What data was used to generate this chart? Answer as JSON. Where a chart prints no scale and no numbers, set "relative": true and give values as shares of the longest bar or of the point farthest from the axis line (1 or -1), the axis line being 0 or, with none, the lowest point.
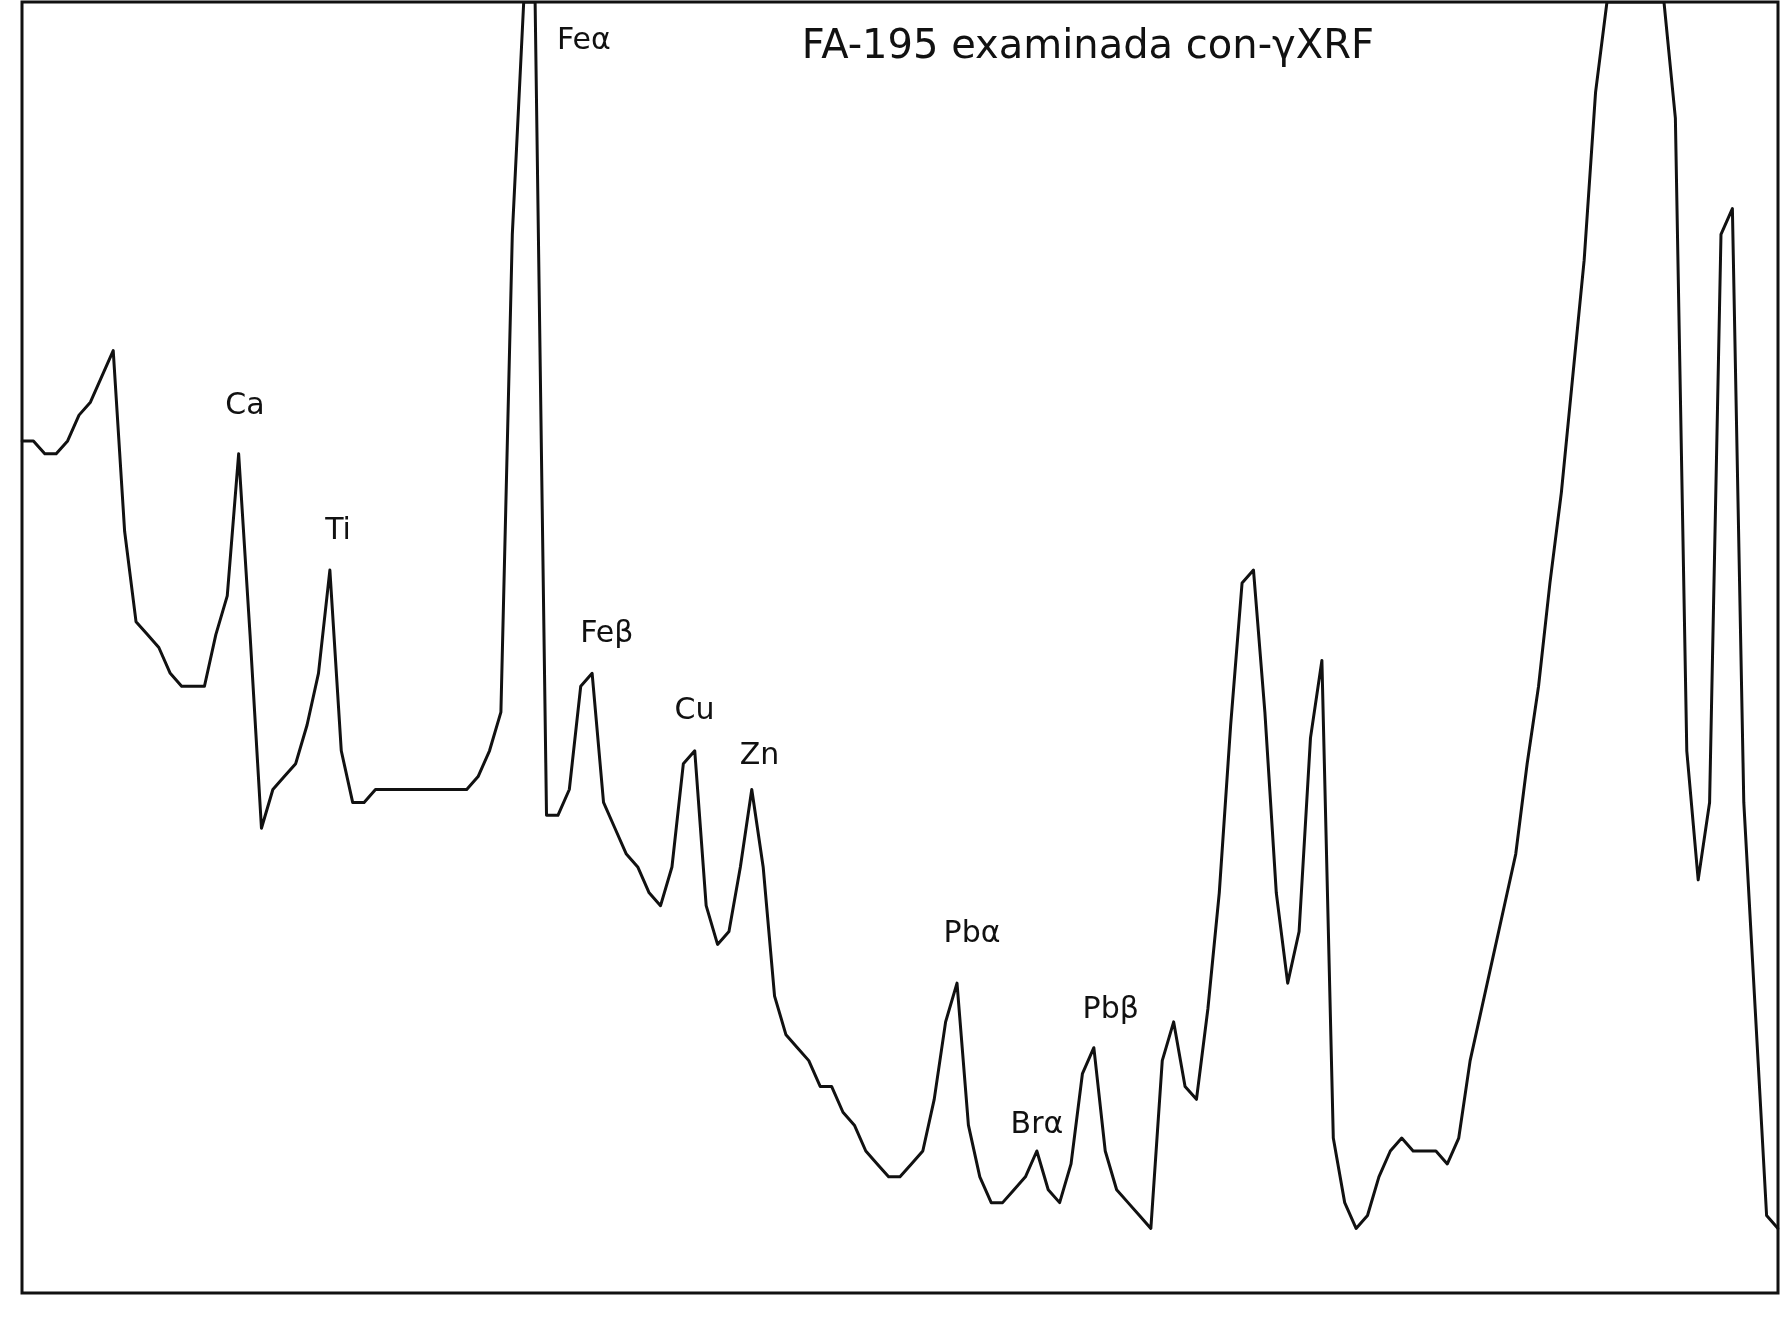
{
  "chart_data": {
    "type": "line",
    "title": "FA-195 examinada con-γXRF",
    "relative": true,
    "color": "#111111",
    "marker": "none",
    "line_style": "solid",
    "legend": false,
    "categories": [
      null,
      null,
      null,
      null,
      null,
      null,
      null,
      null,
      null,
      null,
      null,
      null,
      null,
      null,
      null,
      null,
      null,
      null,
      null,
      null,
      null,
      null,
      null,
      null,
      null,
      null,
      null,
      null,
      null,
      null,
      null,
      null,
      null,
      null,
      null,
      null,
      null,
      null,
      null,
      null,
      null,
      null,
      null,
      null,
      null,
      null,
      null,
      null,
      null,
      null,
      null,
      null,
      null,
      null,
      null,
      null,
      null,
      null,
      null,
      null,
      null,
      null,
      null,
      null,
      null,
      null,
      null,
      null,
      null,
      null,
      null,
      null,
      null,
      null,
      null,
      null,
      null,
      null,
      null,
      null,
      null,
      null,
      null,
      null,
      null,
      null,
      null,
      null,
      null,
      null,
      null,
      null,
      null,
      null,
      null,
      null,
      null,
      null,
      null,
      null,
      null,
      null,
      null,
      null,
      null,
      null,
      null,
      null,
      null,
      null,
      null,
      null,
      null,
      null,
      null,
      null,
      null,
      null,
      null,
      null,
      null,
      null,
      null,
      null,
      null,
      null,
      null,
      null,
      null,
      null,
      null,
      null,
      null,
      null,
      null,
      null,
      null,
      null,
      null,
      null,
      null,
      null,
      null,
      null,
      null,
      null,
      null,
      null,
      null,
      null,
      null,
      null,
      null,
      null,
      null
    ],
    "values": [
      0.66,
      0.66,
      0.65,
      0.65,
      0.66,
      0.68,
      0.69,
      0.71,
      0.73,
      0.59,
      0.52,
      0.51,
      0.5,
      0.48,
      0.47,
      0.47,
      0.47,
      0.51,
      0.54,
      0.65,
      0.51,
      0.36,
      0.39,
      0.4,
      0.41,
      0.44,
      0.48,
      0.56,
      0.42,
      0.38,
      0.38,
      0.39,
      0.39,
      0.39,
      0.39,
      0.39,
      0.39,
      0.39,
      0.39,
      0.39,
      0.4,
      0.42,
      0.45,
      0.82,
      1,
      1,
      0.37,
      0.37,
      0.39,
      0.47,
      0.48,
      0.38,
      0.36,
      0.34,
      0.33,
      0.31,
      0.3,
      0.33,
      0.41,
      0.42,
      0.3,
      0.27,
      0.28,
      0.33,
      0.39,
      0.33,
      0.23,
      0.2,
      0.19,
      0.18,
      0.16,
      0.16,
      0.14,
      0.13,
      0.11,
      0.1,
      0.09,
      0.09,
      0.1,
      0.11,
      0.15,
      0.21,
      0.24,
      0.13,
      0.09,
      0.07,
      0.07,
      0.08,
      0.09,
      0.11,
      0.08,
      0.07,
      0.1,
      0.17,
      0.19,
      0.11,
      0.08,
      0.07,
      0.06,
      0.05,
      0.18,
      0.21,
      0.16,
      0.15,
      0.22,
      0.31,
      0.44,
      0.55,
      0.56,
      0.45,
      0.31,
      0.24,
      0.28,
      0.43,
      0.49,
      0.12,
      0.07,
      0.05,
      0.06,
      0.09,
      0.11,
      0.12,
      0.11,
      0.11,
      0.11,
      0.1,
      0.12,
      0.18,
      0.22,
      0.26,
      0.3,
      0.34,
      0.41,
      0.47,
      0.55,
      0.62,
      0.71,
      0.8,
      0.93,
      1,
      1,
      1,
      1,
      1,
      1,
      0.91,
      0.42,
      0.32,
      0.38,
      0.82,
      0.84,
      0.38,
      0.22,
      0.06,
      0.05
    ],
    "annotations": [
      "Feα",
      "Ca",
      "Ti",
      "Feβ",
      "Cu",
      "Zn",
      "Pbα",
      "Brα",
      "Pbβ"
    ]
  }
}
